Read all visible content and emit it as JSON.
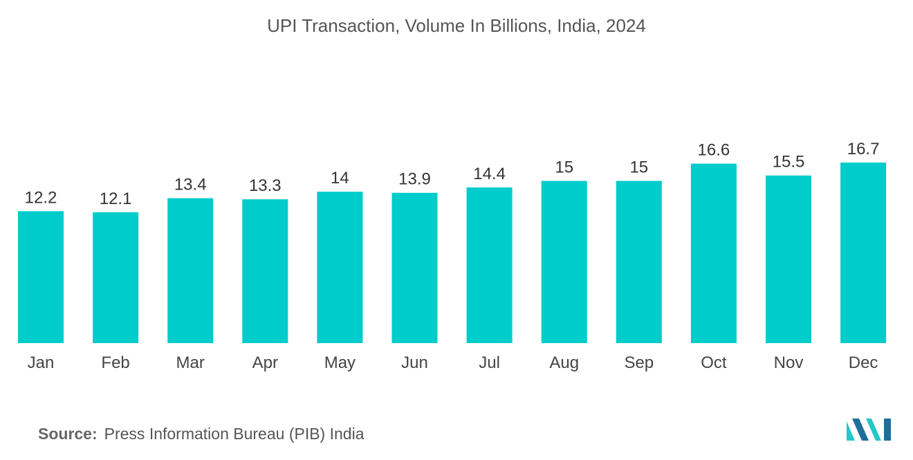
{
  "chart_data": {
    "type": "bar",
    "title": "UPI Transaction, Volume In Billions, India, 2024",
    "categories": [
      "Jan",
      "Feb",
      "Mar",
      "Apr",
      "May",
      "Jun",
      "Jul",
      "Aug",
      "Sep",
      "Oct",
      "Nov",
      "Dec"
    ],
    "values": [
      12.2,
      12.1,
      13.4,
      13.3,
      14,
      13.9,
      14.4,
      15,
      15,
      16.6,
      15.5,
      16.7
    ],
    "value_labels": [
      "12.2",
      "12.1",
      "13.4",
      "13.3",
      "14",
      "13.9",
      "14.4",
      "15",
      "15",
      "16.6",
      "15.5",
      "16.7"
    ],
    "xlabel": "",
    "ylabel": "",
    "ylim": [
      0,
      16.7
    ],
    "grid": false,
    "bar_color": "#00CCCC"
  },
  "source": {
    "label": "Source:",
    "text": "Press Information Bureau (PIB) India"
  },
  "logo": {
    "icon": "mordor-intelligence-logo-icon",
    "colors": [
      "#1F6E9A",
      "#25C8C8"
    ]
  }
}
